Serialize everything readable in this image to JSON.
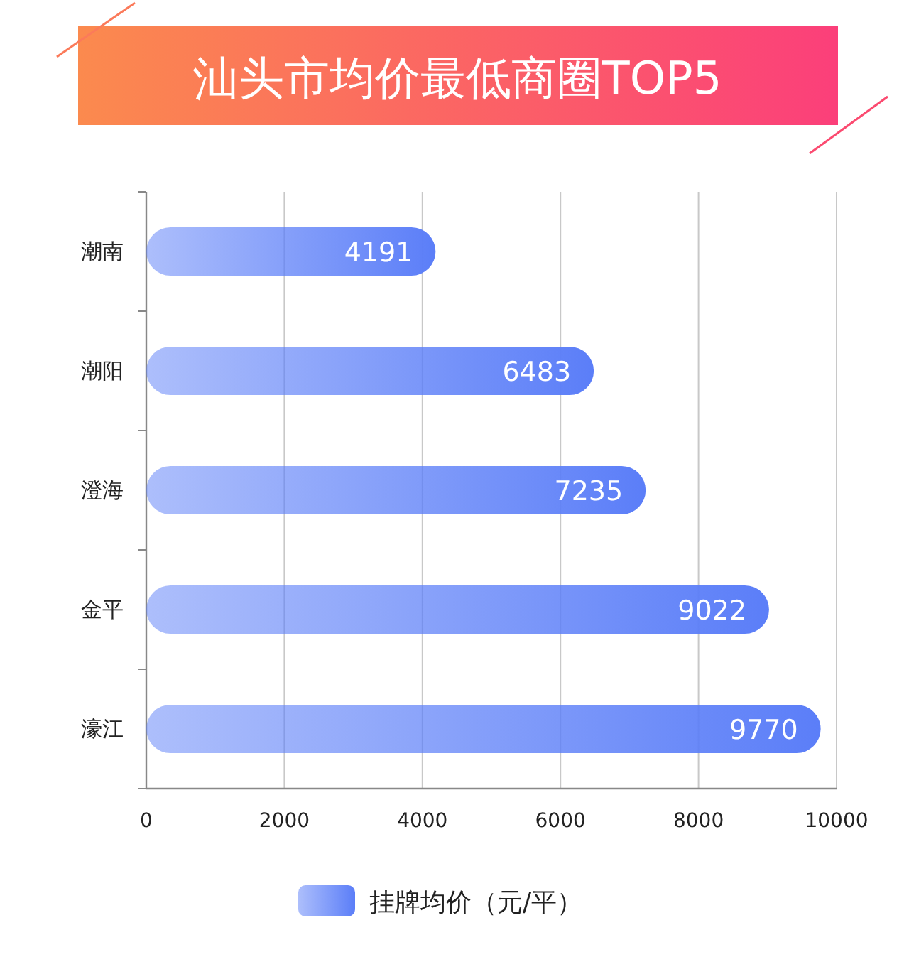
{
  "chart_data": {
    "type": "bar",
    "orientation": "horizontal",
    "title": "汕头市均价最低商圈TOP5",
    "categories": [
      "潮南",
      "潮阳",
      "澄海",
      "金平",
      "濠江"
    ],
    "series": [
      {
        "name": "挂牌均价（元/平）",
        "color": "#5b7ef8",
        "values": [
          4191,
          6483,
          7235,
          9022,
          9770
        ]
      }
    ],
    "xlim": [
      0,
      10000
    ],
    "xticks": [
      0,
      2000,
      4000,
      6000,
      8000,
      10000
    ],
    "grid": "x",
    "legend": "bottom",
    "data_labels": true
  }
}
